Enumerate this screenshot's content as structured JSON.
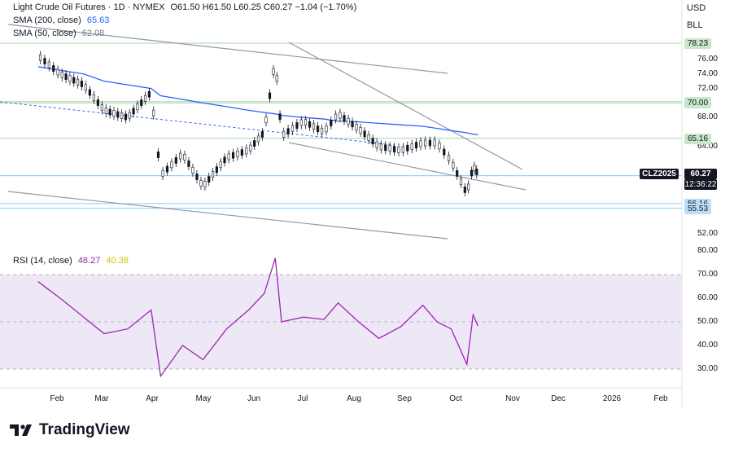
{
  "legend": {
    "title": "Light Crude Oil Futures · 1D · NYMEX",
    "ohlc": "O61.50 H61.50 L60.25 C60.27 −1.04 (−1.70%)",
    "sma200_label": "SMA (200, close)",
    "sma200_value": "65.63",
    "sma50_label": "SMA (50, close)",
    "sma50_value": "62.08",
    "rsi_label": "RSI (14, close)",
    "rsi_value": "48.27",
    "rsi_ma_value": "40.38"
  },
  "currency": "USD",
  "unit": "BLL",
  "symbol_tag": "CLZ2025",
  "last_price": "60.27",
  "countdown": "12:36:22",
  "price_axis": [
    "76.00",
    "74.00",
    "72.00",
    "68.00",
    "64.00",
    "52.00"
  ],
  "price_tags": [
    {
      "label": "78.23",
      "value": 78.23,
      "kind": "green"
    },
    {
      "label": "70.19",
      "value": 70.19,
      "kind": "green"
    },
    {
      "label": "70.00",
      "value": 70.0,
      "kind": "green"
    },
    {
      "label": "65.16",
      "value": 65.16,
      "kind": "green"
    },
    {
      "label": "60.00",
      "value": 60.0,
      "kind": "blue"
    },
    {
      "label": "56.16",
      "value": 56.16,
      "kind": "blue"
    },
    {
      "label": "55.53",
      "value": 55.53,
      "kind": "blue"
    }
  ],
  "rsi_axis": [
    "80.00",
    "70.00",
    "60.00",
    "50.00",
    "40.00",
    "30.00"
  ],
  "time_axis": [
    "Feb",
    "Mar",
    "Apr",
    "May",
    "Jun",
    "Jul",
    "Aug",
    "Sep",
    "Oct",
    "Nov",
    "Dec",
    "2026",
    "Feb"
  ],
  "brand": "TradingView",
  "colors": {
    "up": "#131722",
    "sma200": "#2962ff",
    "sma50": "#787b86",
    "rsi": "#9c27b0",
    "rsi_ma": "#e3e30a",
    "green_line": "#a5d6a7",
    "blue_line": "#90caf9",
    "rsi_band": "#ede7f6"
  },
  "chart_data": {
    "type": "candlestick",
    "x": [
      "Jan 20",
      "Feb 3",
      "Feb 18",
      "Mar 3",
      "Mar 18",
      "Apr 2",
      "Apr 8",
      "Apr 22",
      "May 5",
      "May 20",
      "Jun 3",
      "Jun 13",
      "Jun 20",
      "Jun 24",
      "Jul 8",
      "Jul 21",
      "Jul 30",
      "Aug 12",
      "Aug 25",
      "Sep 8",
      "Sep 22",
      "Oct 1",
      "Oct 10",
      "Oct 20",
      "Oct 24",
      "Oct 27"
    ],
    "close": [
      76.5,
      74.0,
      72.5,
      69.0,
      68.0,
      71.5,
      60.0,
      63.0,
      58.5,
      62.5,
      63.5,
      66.0,
      76.0,
      65.5,
      67.5,
      66.0,
      68.5,
      66.5,
      64.0,
      63.5,
      64.5,
      64.5,
      62.0,
      57.5,
      61.3,
      60.27
    ],
    "sma200": [
      75.0,
      74.5,
      74.0,
      73.0,
      72.5,
      72.0,
      71.0,
      70.5,
      70.0,
      69.5,
      69.0,
      68.7,
      68.5,
      68.3,
      68.0,
      67.8,
      67.5,
      67.4,
      67.2,
      67.0,
      66.8,
      66.5,
      66.2,
      65.9,
      65.7,
      65.63
    ],
    "rsi": [
      67.0,
      60.0,
      52.0,
      45.0,
      47.0,
      55.0,
      27.0,
      40.0,
      34.0,
      47.0,
      55.0,
      62.0,
      77.0,
      50.0,
      52.0,
      51.0,
      58.0,
      50.0,
      43.0,
      48.0,
      57.0,
      50.0,
      47.0,
      32.0,
      53.0,
      48.27
    ],
    "ylim_price": [
      50.8,
      80.5
    ],
    "ylim_rsi": [
      25.5,
      83.0
    ],
    "price_levels": [
      78.23,
      70.19,
      70.0,
      65.16,
      60.0,
      56.16,
      55.53
    ],
    "rsi_levels": [
      70,
      50,
      30
    ]
  }
}
